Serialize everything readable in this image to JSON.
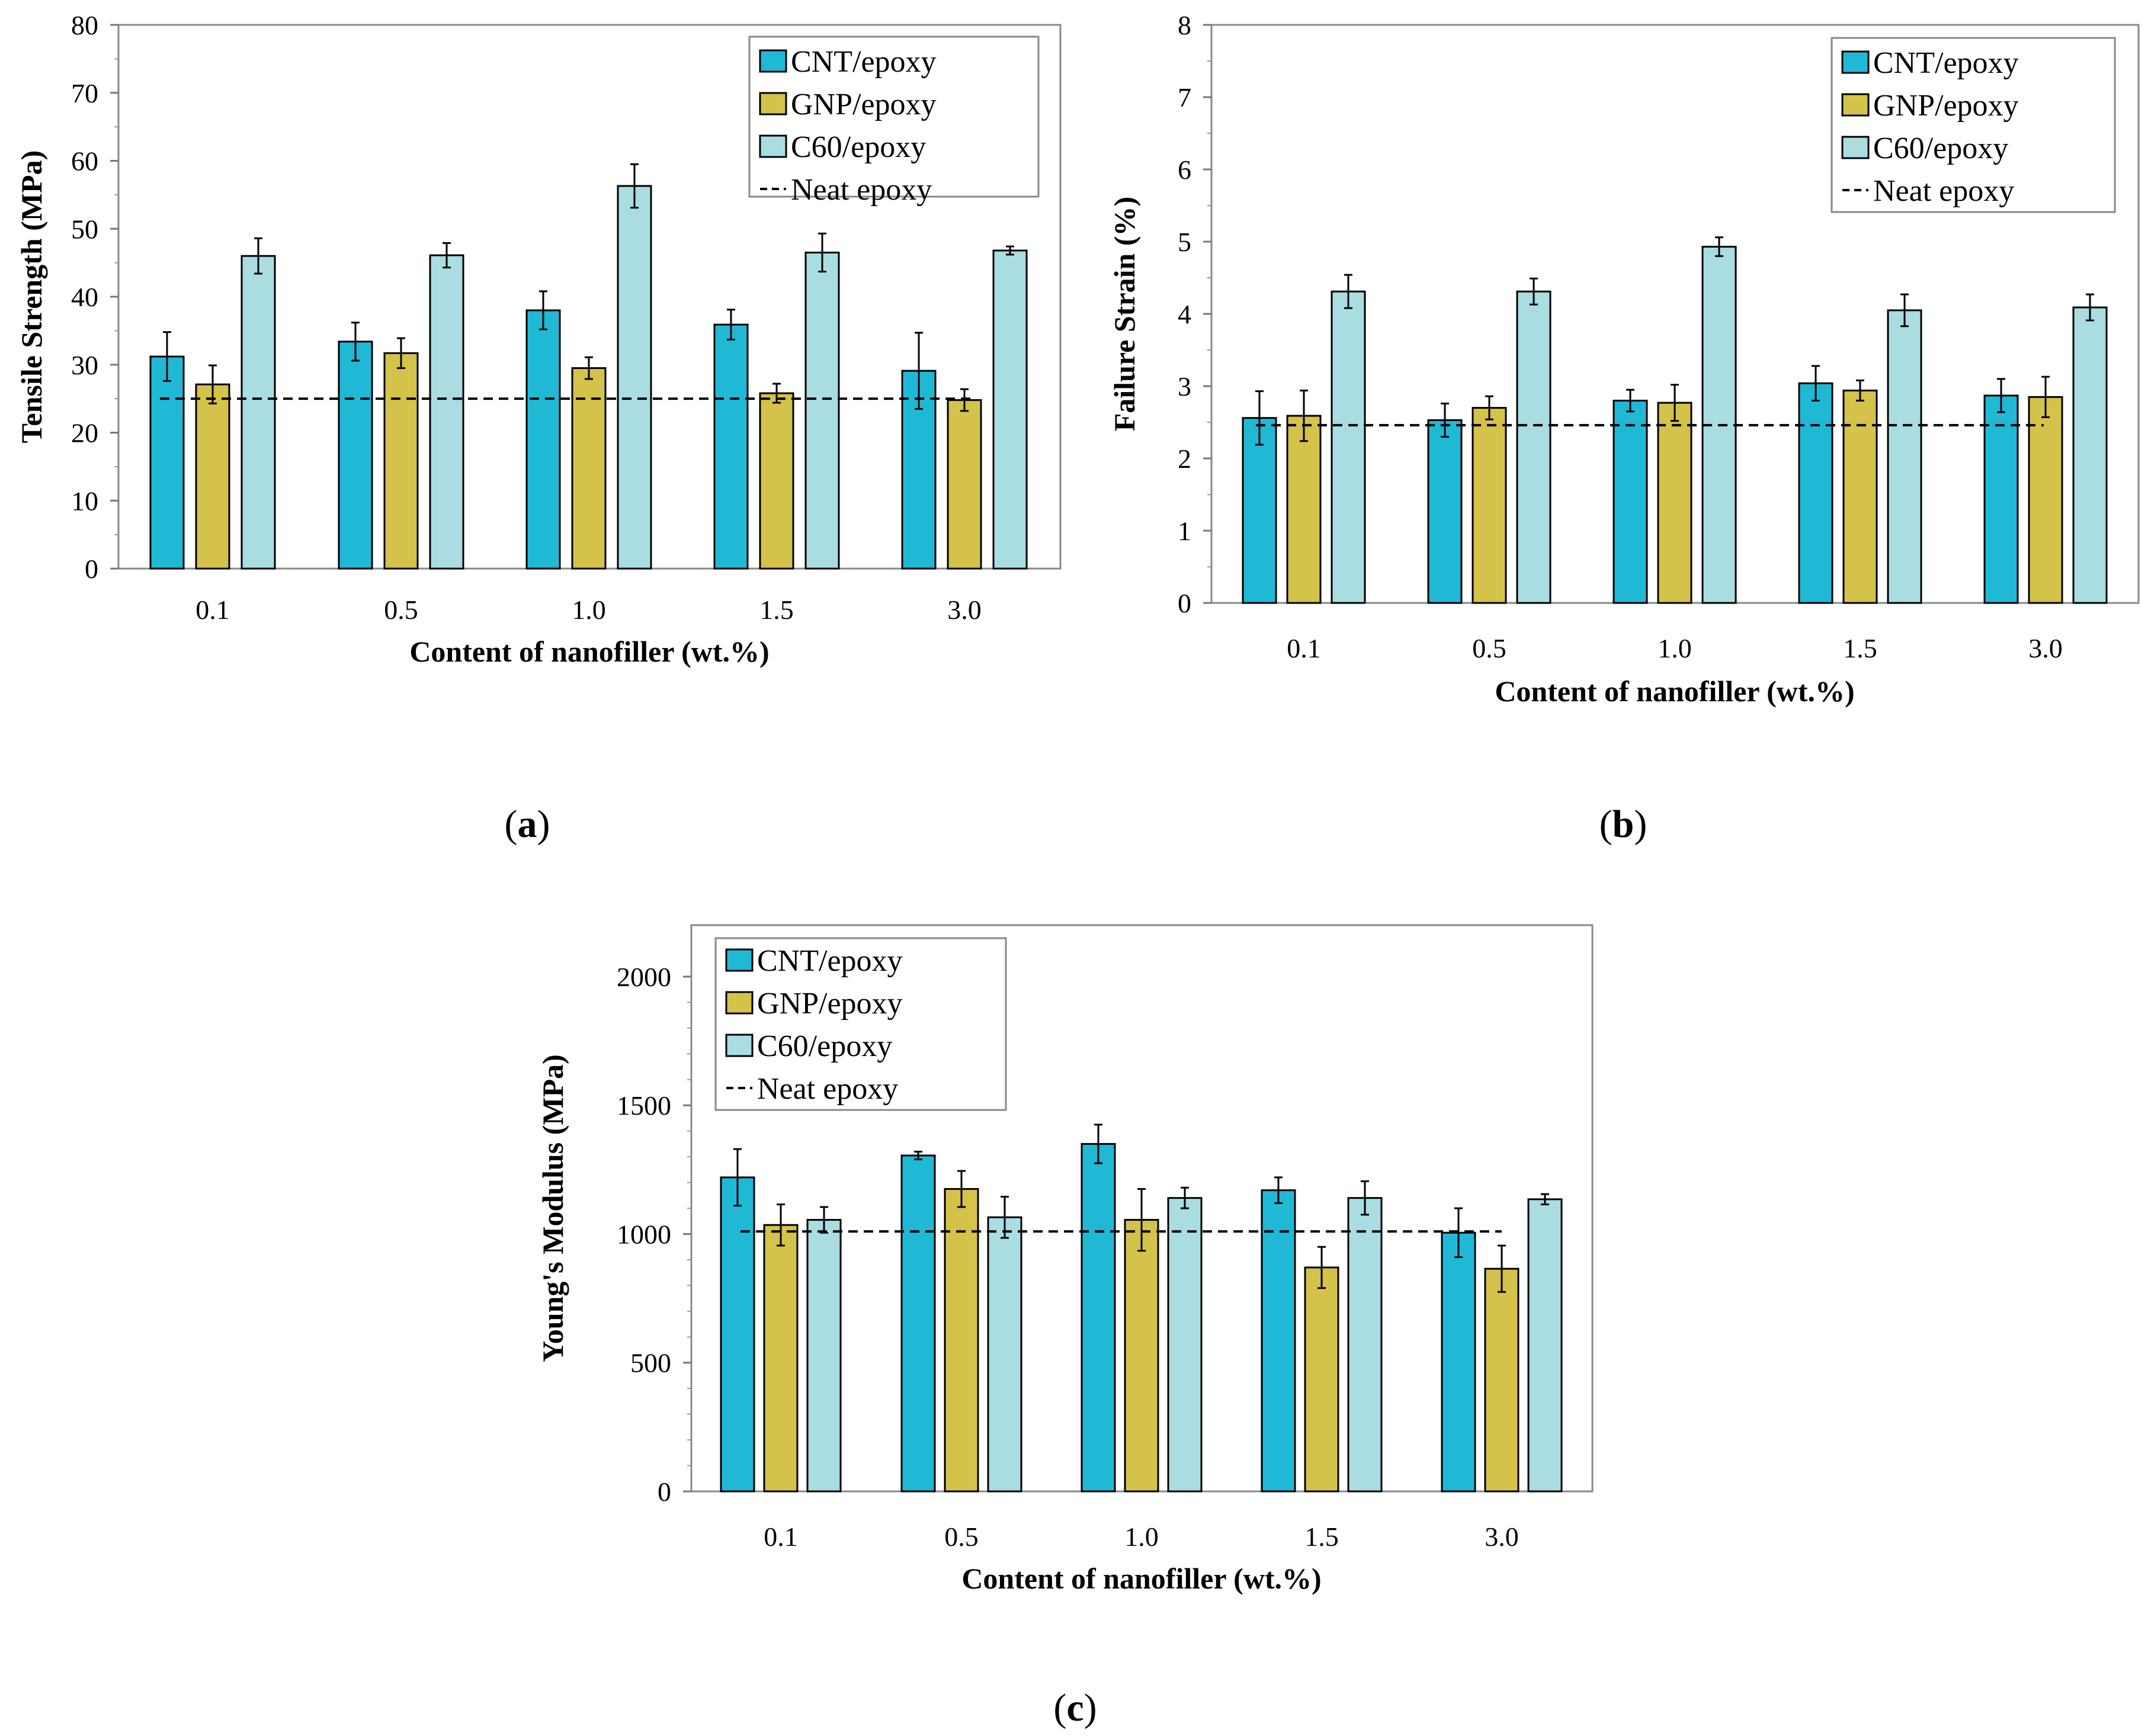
{
  "colors": {
    "CNT/epoxy": "#1fb9d6",
    "GNP/epoxy": "#d4c24a",
    "C60/epoxy": "#a9dde1",
    "neat": "#000000"
  },
  "chart_data": [
    {
      "type": "bar",
      "panel_label": "a",
      "title": "",
      "xlabel": "Content of nanofiller (wt.%)",
      "ylabel": "Tensile Strength (MPa)",
      "categories": [
        "0.1",
        "0.5",
        "1.0",
        "1.5",
        "3.0"
      ],
      "ylim": [
        0,
        80
      ],
      "yticks": [
        0,
        10,
        20,
        30,
        40,
        50,
        60,
        70,
        80
      ],
      "ytick_labels": [
        "0",
        "10",
        "20",
        "30",
        "40",
        "50",
        "60",
        "70",
        "80"
      ],
      "series": [
        {
          "name": "CNT/epoxy",
          "values": [
            31.2,
            33.4,
            38.0,
            35.9,
            29.1
          ],
          "errors": [
            3.6,
            2.8,
            2.8,
            2.2,
            5.6
          ]
        },
        {
          "name": "GNP/epoxy",
          "values": [
            27.1,
            31.7,
            29.5,
            25.8,
            24.8
          ],
          "errors": [
            2.8,
            2.2,
            1.6,
            1.4,
            1.6
          ]
        },
        {
          "name": "C60/epoxy",
          "values": [
            46.0,
            46.1,
            56.3,
            46.5,
            46.8
          ],
          "errors": [
            2.6,
            1.8,
            3.2,
            2.8,
            0.6
          ]
        }
      ],
      "reference_line": {
        "name": "Neat epoxy",
        "value": 25.0
      },
      "legend_labels": [
        "CNT/epoxy",
        "GNP/epoxy",
        "C60/epoxy",
        "Neat epoxy"
      ],
      "legend_position": "top-right"
    },
    {
      "type": "bar",
      "panel_label": "b",
      "title": "",
      "xlabel": "Content of nanofiller (wt.%)",
      "ylabel": "Failure Strain (%)",
      "categories": [
        "0.1",
        "0.5",
        "1.0",
        "1.5",
        "3.0"
      ],
      "ylim": [
        0,
        8
      ],
      "yticks": [
        0,
        1,
        2,
        3,
        4,
        5,
        6,
        7,
        8
      ],
      "ytick_labels": [
        "0",
        "1",
        "2",
        "3",
        "4",
        "5",
        "6",
        "7",
        "8"
      ],
      "series": [
        {
          "name": "CNT/epoxy",
          "values": [
            2.56,
            2.53,
            2.8,
            3.04,
            2.87
          ],
          "errors": [
            0.37,
            0.23,
            0.15,
            0.24,
            0.23
          ]
        },
        {
          "name": "GNP/epoxy",
          "values": [
            2.59,
            2.7,
            2.77,
            2.94,
            2.85
          ],
          "errors": [
            0.35,
            0.16,
            0.25,
            0.14,
            0.28
          ]
        },
        {
          "name": "C60/epoxy",
          "values": [
            4.31,
            4.31,
            4.93,
            4.05,
            4.09
          ],
          "errors": [
            0.23,
            0.18,
            0.13,
            0.22,
            0.18
          ]
        }
      ],
      "reference_line": {
        "name": "Neat epoxy",
        "value": 2.46
      },
      "legend_labels": [
        "CNT/epoxy",
        "GNP/epoxy",
        "C60/epoxy",
        "Neat epoxy"
      ],
      "legend_position": "top-right"
    },
    {
      "type": "bar",
      "panel_label": "c",
      "title": "",
      "xlabel": "Content of nanofiller (wt.%)",
      "ylabel": "Young's Modulus (MPa)",
      "categories": [
        "0.1",
        "0.5",
        "1.0",
        "1.5",
        "3.0"
      ],
      "ylim": [
        0,
        2200
      ],
      "yticks": [
        0,
        500,
        1000,
        1500,
        2000
      ],
      "ytick_labels": [
        "0",
        "500",
        "1000",
        "1500",
        "2000"
      ],
      "series": [
        {
          "name": "CNT/epoxy",
          "values": [
            1220,
            1305,
            1350,
            1170,
            1005
          ],
          "errors": [
            110,
            15,
            75,
            50,
            95
          ]
        },
        {
          "name": "GNP/epoxy",
          "values": [
            1035,
            1175,
            1055,
            870,
            865
          ],
          "errors": [
            80,
            70,
            120,
            80,
            90
          ]
        },
        {
          "name": "C60/epoxy",
          "values": [
            1055,
            1065,
            1140,
            1140,
            1135
          ],
          "errors": [
            50,
            80,
            40,
            65,
            20
          ]
        }
      ],
      "reference_line": {
        "name": "Neat epoxy",
        "value": 1010
      },
      "legend_labels": [
        "CNT/epoxy",
        "GNP/epoxy",
        "C60/epoxy",
        "Neat epoxy"
      ],
      "legend_position": "top-left"
    }
  ]
}
